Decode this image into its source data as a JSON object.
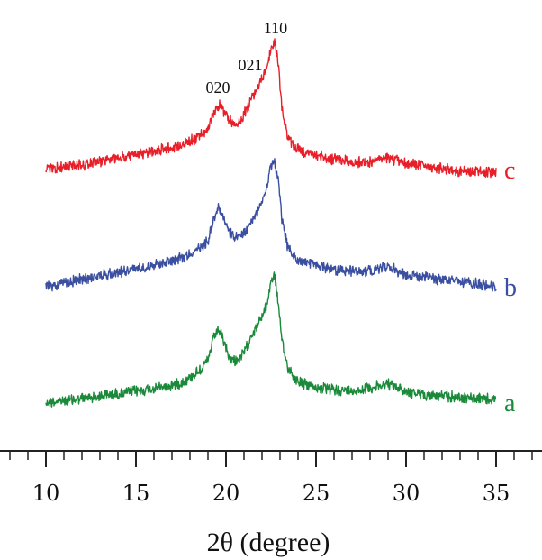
{
  "chart_data": {
    "type": "line",
    "xlabel": "2θ (degree)",
    "xlim": [
      10,
      35
    ],
    "x_ticks": [
      10,
      15,
      20,
      25,
      30,
      35
    ],
    "x_tick_labels": [
      "10",
      "15",
      "20",
      "25",
      "30",
      "35"
    ],
    "yaxis_visible": false,
    "grid": false,
    "annotations": [
      {
        "text": "020",
        "x": 19.6
      },
      {
        "text": "021",
        "x": 21.3
      },
      {
        "text": "110",
        "x": 22.6
      }
    ],
    "series": [
      {
        "name": "a",
        "color": "#1a8a3a",
        "x": [
          10,
          11,
          12,
          13,
          14,
          15,
          16,
          17,
          17.5,
          18,
          18.5,
          19,
          19.3,
          19.6,
          19.9,
          20.2,
          20.5,
          20.8,
          21.1,
          21.4,
          21.7,
          22,
          22.3,
          22.5,
          22.7,
          22.9,
          23.1,
          23.4,
          23.8,
          24.3,
          25,
          26,
          27,
          28,
          28.5,
          29,
          29.5,
          30,
          31,
          32,
          33,
          34,
          35
        ],
        "values": [
          0.0,
          0.01,
          0.03,
          0.05,
          0.07,
          0.09,
          0.11,
          0.14,
          0.16,
          0.2,
          0.26,
          0.34,
          0.52,
          0.6,
          0.48,
          0.36,
          0.34,
          0.36,
          0.43,
          0.55,
          0.62,
          0.7,
          0.82,
          1.0,
          1.04,
          0.82,
          0.5,
          0.3,
          0.2,
          0.15,
          0.12,
          0.1,
          0.09,
          0.12,
          0.13,
          0.15,
          0.12,
          0.09,
          0.06,
          0.05,
          0.04,
          0.03,
          0.02
        ]
      },
      {
        "name": "b",
        "color": "#3a4fa0",
        "x": [
          10,
          11,
          12,
          13,
          14,
          15,
          16,
          17,
          17.5,
          18,
          18.5,
          19,
          19.3,
          19.6,
          19.9,
          20.2,
          20.5,
          20.8,
          21.1,
          21.4,
          21.7,
          22,
          22.3,
          22.5,
          22.7,
          22.9,
          23.1,
          23.4,
          23.8,
          24.3,
          25,
          26,
          27,
          28,
          28.5,
          29,
          29.5,
          30,
          31,
          32,
          33,
          34,
          35
        ],
        "values": [
          0.0,
          0.03,
          0.06,
          0.09,
          0.12,
          0.15,
          0.18,
          0.22,
          0.24,
          0.27,
          0.31,
          0.38,
          0.55,
          0.66,
          0.56,
          0.44,
          0.4,
          0.41,
          0.46,
          0.53,
          0.6,
          0.7,
          0.85,
          1.0,
          1.03,
          0.88,
          0.55,
          0.34,
          0.24,
          0.2,
          0.18,
          0.14,
          0.13,
          0.13,
          0.15,
          0.17,
          0.13,
          0.1,
          0.08,
          0.06,
          0.04,
          0.02,
          0.0
        ]
      },
      {
        "name": "c",
        "color": "#e81e28",
        "x": [
          10,
          11,
          12,
          13,
          14,
          15,
          16,
          17,
          17.5,
          18,
          18.5,
          19,
          19.3,
          19.6,
          19.9,
          20.2,
          20.5,
          20.8,
          21.1,
          21.4,
          21.7,
          22,
          22.3,
          22.5,
          22.7,
          22.9,
          23.1,
          23.4,
          23.8,
          24.3,
          25,
          26,
          27,
          28,
          28.5,
          29,
          29.5,
          30,
          31,
          32,
          33,
          34,
          35
        ],
        "values": [
          0.0,
          0.02,
          0.04,
          0.07,
          0.09,
          0.12,
          0.15,
          0.18,
          0.2,
          0.23,
          0.27,
          0.33,
          0.45,
          0.54,
          0.48,
          0.4,
          0.37,
          0.4,
          0.48,
          0.58,
          0.66,
          0.74,
          0.85,
          1.0,
          1.04,
          0.88,
          0.5,
          0.28,
          0.18,
          0.14,
          0.12,
          0.08,
          0.06,
          0.06,
          0.08,
          0.09,
          0.07,
          0.05,
          0.03,
          0.01,
          -0.01,
          -0.02,
          -0.03
        ]
      }
    ]
  }
}
